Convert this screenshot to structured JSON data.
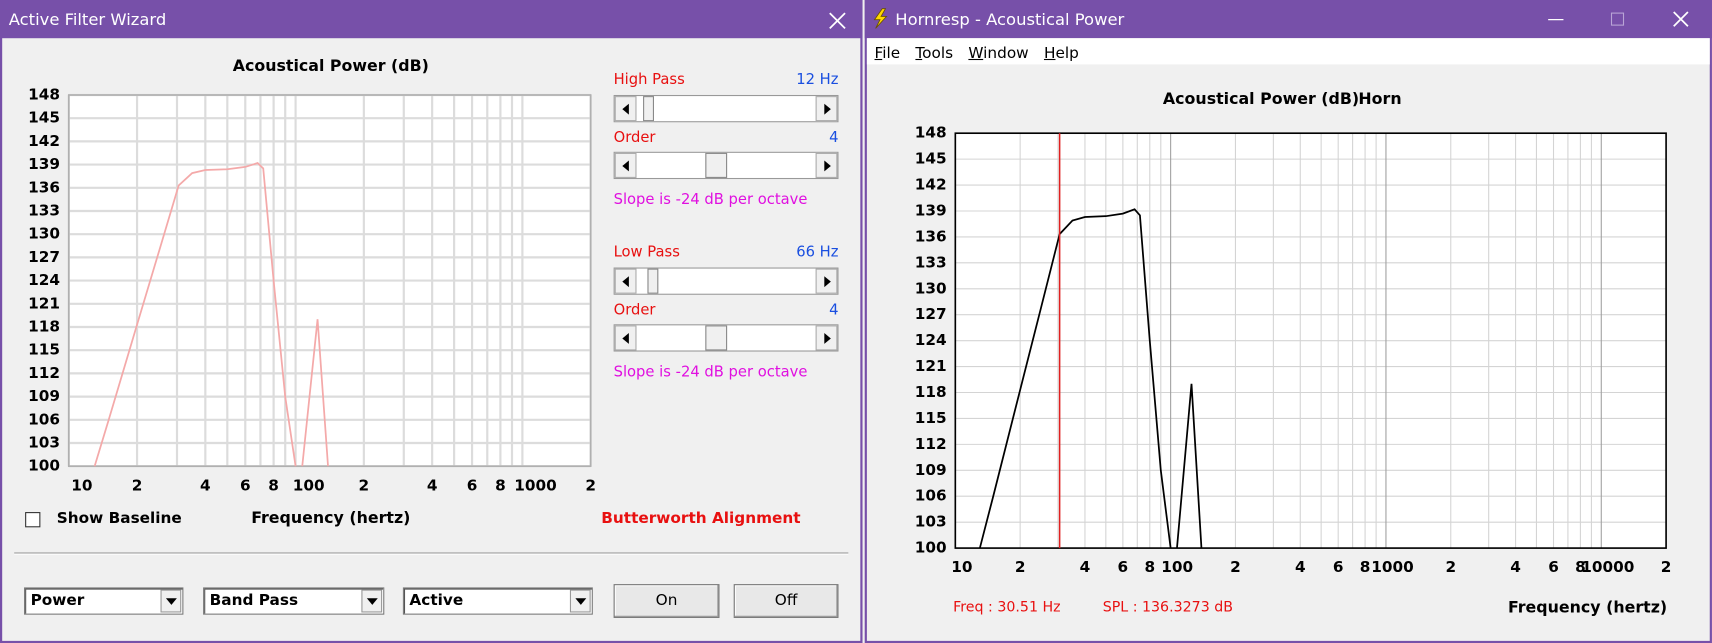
{
  "chart_data": [
    {
      "type": "line",
      "title": "Acoustical Power (dB)",
      "x_label": "Frequency (hertz)",
      "log_x": true,
      "xlim": [
        10,
        2000
      ],
      "ylim": [
        100,
        148
      ],
      "yticks": [
        100,
        103,
        106,
        109,
        112,
        115,
        118,
        121,
        124,
        127,
        130,
        133,
        136,
        139,
        142,
        145,
        148
      ],
      "xticks": [
        10,
        {
          "value": 20,
          "label": "2"
        },
        {
          "value": 40,
          "label": "4"
        },
        {
          "value": 60,
          "label": "6"
        },
        {
          "value": 80,
          "label": "8"
        },
        100,
        {
          "value": 200,
          "label": "2"
        },
        {
          "value": 400,
          "label": "4"
        },
        {
          "value": 600,
          "label": "6"
        },
        {
          "value": 800,
          "label": "8"
        },
        1000,
        {
          "value": 2000,
          "label": "2"
        }
      ],
      "xminor": [
        30,
        50,
        70,
        90,
        300,
        500,
        700,
        900
      ],
      "grid": true,
      "color": "#f4a9a9",
      "x": [
        13,
        15,
        20,
        25,
        30.51,
        35,
        40,
        50,
        60,
        68,
        72,
        80,
        90,
        100,
        103,
        107,
        125,
        139
      ],
      "values": [
        100,
        106,
        118.3,
        127.8,
        136.3,
        137.9,
        138.3,
        138.4,
        138.7,
        139.2,
        138.5,
        124,
        109,
        100,
        null,
        100,
        119,
        100
      ]
    },
    {
      "type": "line",
      "title": "Acoustical Power (dB)",
      "subtitle": "Horn",
      "x_label": "Frequency (hertz)",
      "log_x": true,
      "xlim": [
        10,
        20000
      ],
      "ylim": [
        100,
        148
      ],
      "yticks": [
        100,
        103,
        106,
        109,
        112,
        115,
        118,
        121,
        124,
        127,
        130,
        133,
        136,
        139,
        142,
        145,
        148
      ],
      "xticks": [
        10,
        {
          "value": 20,
          "label": "2"
        },
        {
          "value": 40,
          "label": "4"
        },
        {
          "value": 60,
          "label": "6"
        },
        {
          "value": 80,
          "label": "8"
        },
        100,
        {
          "value": 200,
          "label": "2"
        },
        {
          "value": 400,
          "label": "4"
        },
        {
          "value": 600,
          "label": "6"
        },
        {
          "value": 800,
          "label": "8"
        },
        1000,
        {
          "value": 2000,
          "label": "2"
        },
        {
          "value": 4000,
          "label": "4"
        },
        {
          "value": 6000,
          "label": "6"
        },
        {
          "value": 8000,
          "label": "8"
        },
        10000,
        {
          "value": 20000,
          "label": "2"
        }
      ],
      "xminor": [
        30,
        50,
        70,
        90,
        300,
        500,
        700,
        900,
        3000,
        5000,
        7000,
        9000
      ],
      "grid": true,
      "color": "#000000",
      "cursor_x": 30.51,
      "cursor_color": "#e02020",
      "x": [
        13,
        15,
        20,
        25,
        30.51,
        35,
        40,
        50,
        60,
        68,
        72,
        80,
        90,
        100,
        103,
        107,
        125,
        139
      ],
      "values": [
        100,
        106,
        118.3,
        127.8,
        136.3273,
        137.9,
        138.3,
        138.4,
        138.7,
        139.2,
        138.5,
        124,
        109,
        100,
        null,
        100,
        119,
        100
      ]
    }
  ],
  "filter_wizard": {
    "title": "Active Filter Wizard",
    "high_pass_label": "High Pass",
    "high_pass_value": "12 Hz",
    "order_label": "Order",
    "high_order": 4,
    "high_slope": "Slope is -24 dB per octave",
    "low_pass_label": "Low Pass",
    "low_pass_value": "66 Hz",
    "low_order_label": "Order",
    "low_order": 4,
    "low_slope": "Slope is -24 dB per octave",
    "show_baseline": "Show Baseline",
    "alignment": "Butterworth Alignment",
    "dropdowns": [
      "Power",
      "Band Pass",
      "Active"
    ],
    "buttons": [
      "On",
      "Off"
    ]
  },
  "hornresp": {
    "title": "Hornresp - Acoustical Power",
    "menu": [
      "File",
      "Tools",
      "Window",
      "Help"
    ],
    "freq_readout": "Freq : 30.51 Hz",
    "spl_readout": "SPL : 136.3273 dB"
  }
}
